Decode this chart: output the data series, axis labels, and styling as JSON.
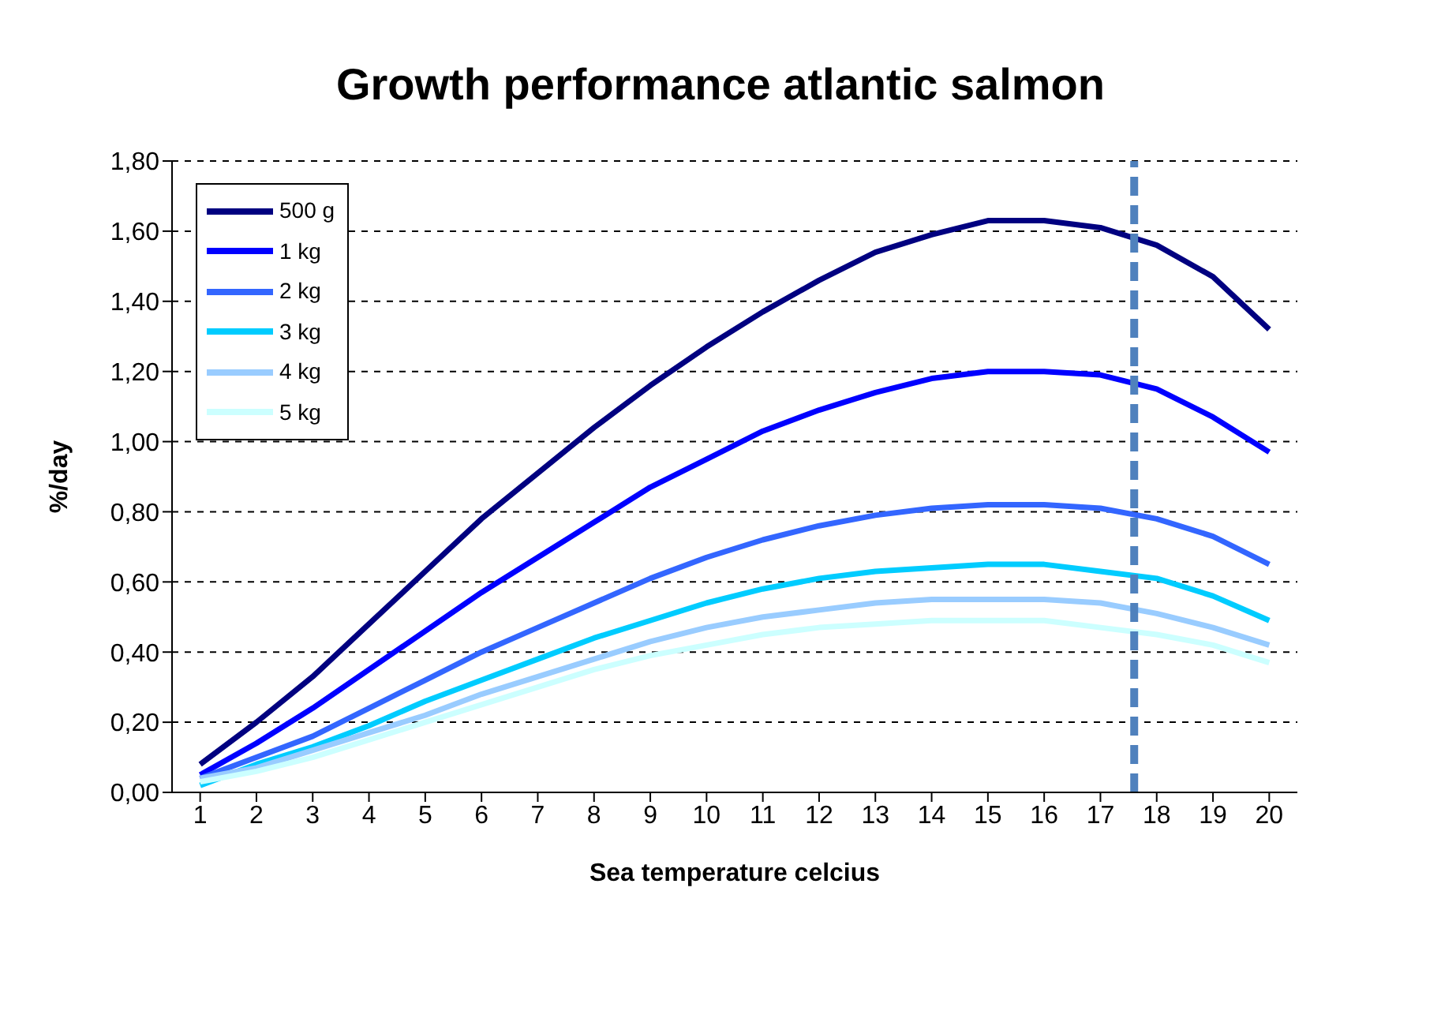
{
  "chart_data": {
    "type": "line",
    "title": "Growth performance atlantic salmon",
    "xlabel": "Sea temperature celcius",
    "ylabel": "%/day",
    "x": [
      1,
      2,
      3,
      4,
      5,
      6,
      7,
      8,
      9,
      10,
      11,
      12,
      13,
      14,
      15,
      16,
      17,
      18,
      19,
      20
    ],
    "xlim": [
      0.5,
      20.5
    ],
    "xticks": [
      1,
      2,
      3,
      4,
      5,
      6,
      7,
      8,
      9,
      10,
      11,
      12,
      13,
      14,
      15,
      16,
      17,
      18,
      19,
      20
    ],
    "ylim": [
      0,
      1.8
    ],
    "yticks": [
      {
        "value": 0,
        "label": "0,00"
      },
      {
        "value": 0.2,
        "label": "0,20"
      },
      {
        "value": 0.4,
        "label": "0,40"
      },
      {
        "value": 0.6,
        "label": "0,60"
      },
      {
        "value": 0.8,
        "label": "0,80"
      },
      {
        "value": 1.0,
        "label": "1,00"
      },
      {
        "value": 1.2,
        "label": "1,20"
      },
      {
        "value": 1.4,
        "label": "1,40"
      },
      {
        "value": 1.6,
        "label": "1,60"
      },
      {
        "value": 1.8,
        "label": "1,80"
      }
    ],
    "grid": "y",
    "legend": "top left",
    "marker": "none",
    "line_style": "solid",
    "series": [
      {
        "name": "500 g",
        "color": "#000080",
        "values": [
          0.08,
          0.2,
          0.33,
          0.48,
          0.63,
          0.78,
          0.91,
          1.04,
          1.16,
          1.27,
          1.37,
          1.46,
          1.54,
          1.59,
          1.63,
          1.63,
          1.61,
          1.56,
          1.47,
          1.32
        ]
      },
      {
        "name": "1 kg",
        "color": "#0000ff",
        "values": [
          0.05,
          0.14,
          0.24,
          0.35,
          0.46,
          0.57,
          0.67,
          0.77,
          0.87,
          0.95,
          1.03,
          1.09,
          1.14,
          1.18,
          1.2,
          1.2,
          1.19,
          1.15,
          1.07,
          0.97
        ]
      },
      {
        "name": "2 kg",
        "color": "#3366ff",
        "values": [
          0.04,
          0.1,
          0.16,
          0.24,
          0.32,
          0.4,
          0.47,
          0.54,
          0.61,
          0.67,
          0.72,
          0.76,
          0.79,
          0.81,
          0.82,
          0.82,
          0.81,
          0.78,
          0.73,
          0.65
        ]
      },
      {
        "name": "3 kg",
        "color": "#00ccff",
        "values": [
          0.02,
          0.08,
          0.13,
          0.19,
          0.26,
          0.32,
          0.38,
          0.44,
          0.49,
          0.54,
          0.58,
          0.61,
          0.63,
          0.64,
          0.65,
          0.65,
          0.63,
          0.61,
          0.56,
          0.49
        ]
      },
      {
        "name": "4 kg",
        "color": "#99ccff",
        "values": [
          0.04,
          0.07,
          0.12,
          0.17,
          0.22,
          0.28,
          0.33,
          0.38,
          0.43,
          0.47,
          0.5,
          0.52,
          0.54,
          0.55,
          0.55,
          0.55,
          0.54,
          0.51,
          0.47,
          0.42
        ]
      },
      {
        "name": "5 kg",
        "color": "#ccffff",
        "values": [
          0.03,
          0.06,
          0.1,
          0.15,
          0.2,
          0.25,
          0.3,
          0.35,
          0.39,
          0.42,
          0.45,
          0.47,
          0.48,
          0.49,
          0.49,
          0.49,
          0.47,
          0.45,
          0.42,
          0.37
        ]
      }
    ],
    "ref_lines": [
      {
        "axis": "x",
        "value": 17.6,
        "color": "#4f81bd",
        "line_style": "dashed"
      }
    ]
  }
}
